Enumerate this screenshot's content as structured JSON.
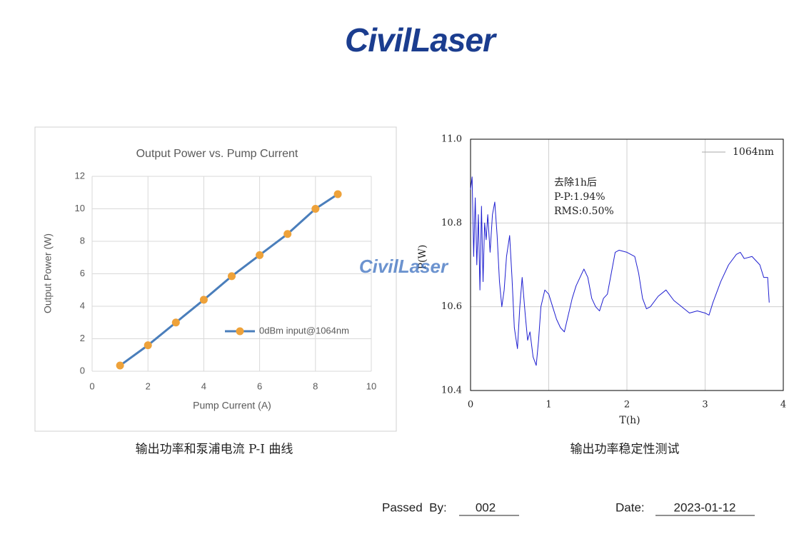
{
  "logo": "CivilLaser",
  "watermark": "CivilLaser",
  "chart_data": [
    {
      "type": "line",
      "title": "Output Power vs. Pump Current",
      "x_label": "Pump Current (A)",
      "y_label": "Output Power (W)",
      "x": [
        1,
        2,
        3,
        4,
        5,
        6,
        7,
        8,
        8.8
      ],
      "series": [
        {
          "name": "0dBm input@1064nm",
          "color": "#4a7ebb",
          "marker_color": "#eea23a",
          "values": [
            0.35,
            1.6,
            3.0,
            4.4,
            5.85,
            7.15,
            8.45,
            10.0,
            10.9
          ]
        }
      ],
      "xlim": [
        0,
        10
      ],
      "xticks": [
        0,
        2,
        4,
        6,
        8,
        10
      ],
      "ylim": [
        0,
        12
      ],
      "yticks": [
        0,
        2,
        4,
        6,
        8,
        10,
        12
      ],
      "grid": true,
      "legend": "right",
      "caption": "输出功率和泵浦电流 P-I 曲线"
    },
    {
      "type": "line",
      "x_label": "T(h)",
      "y_label": "P(W)",
      "x": [
        0,
        0.02,
        0.04,
        0.06,
        0.08,
        0.1,
        0.12,
        0.14,
        0.16,
        0.18,
        0.2,
        0.22,
        0.25,
        0.28,
        0.31,
        0.34,
        0.37,
        0.4,
        0.43,
        0.46,
        0.5,
        0.53,
        0.56,
        0.6,
        0.63,
        0.66,
        0.7,
        0.73,
        0.76,
        0.8,
        0.84,
        0.87,
        0.9,
        0.95,
        1.0,
        1.05,
        1.1,
        1.15,
        1.2,
        1.25,
        1.3,
        1.35,
        1.4,
        1.45,
        1.5,
        1.55,
        1.6,
        1.65,
        1.7,
        1.75,
        1.8,
        1.85,
        1.9,
        2.0,
        2.1,
        2.15,
        2.2,
        2.25,
        2.3,
        2.4,
        2.5,
        2.6,
        2.7,
        2.8,
        2.9,
        3.0,
        3.05,
        3.1,
        3.2,
        3.3,
        3.4,
        3.45,
        3.5,
        3.6,
        3.7,
        3.75,
        3.8,
        3.82
      ],
      "series": [
        {
          "name": "1064nm",
          "color": "#1f1fd0",
          "values": [
            10.88,
            10.91,
            10.72,
            10.86,
            10.7,
            10.82,
            10.64,
            10.84,
            10.66,
            10.8,
            10.76,
            10.82,
            10.73,
            10.82,
            10.85,
            10.77,
            10.66,
            10.6,
            10.64,
            10.72,
            10.77,
            10.67,
            10.55,
            10.5,
            10.6,
            10.67,
            10.58,
            10.52,
            10.54,
            10.48,
            10.46,
            10.52,
            10.6,
            10.64,
            10.63,
            10.6,
            10.57,
            10.55,
            10.54,
            10.58,
            10.62,
            10.65,
            10.67,
            10.69,
            10.67,
            10.62,
            10.6,
            10.59,
            10.62,
            10.63,
            10.68,
            10.73,
            10.735,
            10.73,
            10.72,
            10.68,
            10.62,
            10.595,
            10.6,
            10.625,
            10.64,
            10.615,
            10.6,
            10.585,
            10.59,
            10.585,
            10.58,
            10.61,
            10.66,
            10.7,
            10.725,
            10.73,
            10.715,
            10.72,
            10.7,
            10.67,
            10.67,
            10.61
          ]
        }
      ],
      "xlim": [
        0,
        4
      ],
      "xticks": [
        0,
        1,
        2,
        3,
        4
      ],
      "ylim": [
        10.4,
        11.0
      ],
      "yticks": [
        10.4,
        10.6,
        10.8,
        {
          "value": 11.0,
          "label": "11.0"
        }
      ],
      "grid": true,
      "legend": "upper right",
      "annotations": [
        "去除1h后",
        "P-P:1.94%",
        "RMS:0.50%"
      ],
      "caption": "输出功率稳定性测试"
    }
  ],
  "footer": {
    "passed_by_label": "Passed  By:",
    "passed_by": "002",
    "date_label": "Date:",
    "date": "2023-01-12"
  }
}
